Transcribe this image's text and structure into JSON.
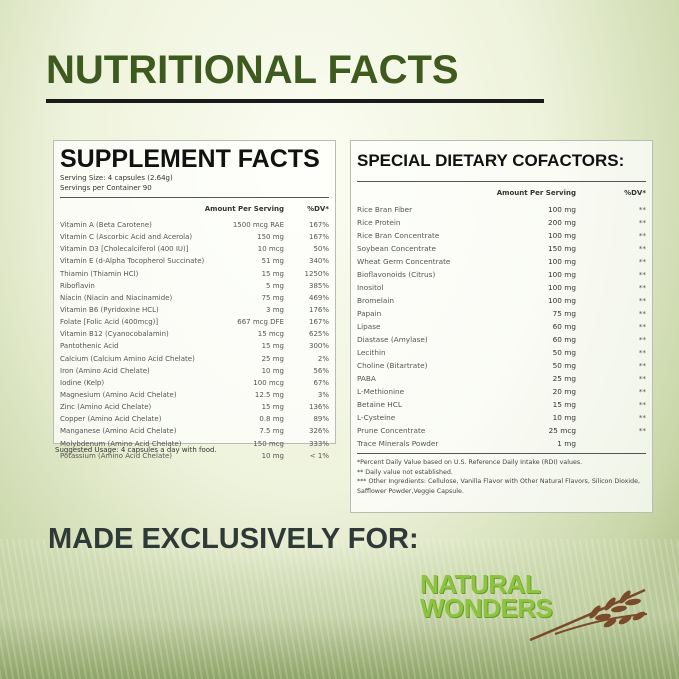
{
  "title": "NUTRITIONAL FACTS",
  "supplement": {
    "heading": "SUPPLEMENT FACTS",
    "serving_size": "Serving Size: 4 capsules (2.64g)",
    "servings": "Servings per Container 90",
    "col_amount": "Amount Per Serving",
    "col_dv": "%DV*",
    "rows": [
      [
        "Vitamin A (Beta Carotene)",
        "1500 mcg RAE",
        "167%"
      ],
      [
        "Vitamin C (Ascorbic Acid and Acerola)",
        "150 mg",
        "167%"
      ],
      [
        "Vitamin D3 [Cholecalciferol (400 IU)]",
        "10 mcg",
        "50%"
      ],
      [
        "Vitamin E (d-Alpha Tocopherol Succinate)",
        "51 mg",
        "340%"
      ],
      [
        "Thiamin (Thiamin HCl)",
        "15 mg",
        "1250%"
      ],
      [
        "Riboflavin",
        "5 mg",
        "385%"
      ],
      [
        "Niacin (Niacin and Niacinamide)",
        "75 mg",
        "469%"
      ],
      [
        "Vitamin B6 (Pyridoxine HCL)",
        "3 mg",
        "176%"
      ],
      [
        "Folate [Folic Acid (400mcg)]",
        "667 mcg DFE",
        "167%"
      ],
      [
        "Vitamin B12 (Cyanocobalamin)",
        "15 mcg",
        "625%"
      ],
      [
        "Pantothenic Acid",
        "15 mg",
        "300%"
      ],
      [
        "Calcium (Calcium Amino Acid Chelate)",
        "25 mg",
        "2%"
      ],
      [
        "Iron (Amino Acid Chelate)",
        "10 mg",
        "56%"
      ],
      [
        "Iodine (Kelp)",
        "100 mcg",
        "67%"
      ],
      [
        "Magnesium (Amino Acid Chelate)",
        "12.5 mg",
        "3%"
      ],
      [
        "Zinc (Amino Acid Chelate)",
        "15 mg",
        "136%"
      ],
      [
        "Copper (Amino Acid Chelate)",
        "0.8 mg",
        "89%"
      ],
      [
        "Manganese (Amino Acid Chelate)",
        "7.5 mg",
        "326%"
      ],
      [
        "Molybdenum (Amino Acid Chelate)",
        "150 mcg",
        "333%"
      ],
      [
        "Potassium (Amino Acid Chelate)",
        "10 mg",
        "< 1%"
      ]
    ],
    "usage": "Suggested Usage: 4 capsules a day with food."
  },
  "cofactors": {
    "heading": "SPECIAL DIETARY COFACTORS:",
    "col_amount": "Amount Per Serving",
    "col_dv": "%DV*",
    "rows": [
      [
        "Rice Bran Fiber",
        "100 mg",
        "**"
      ],
      [
        "Rice Protein",
        "200 mg",
        "**"
      ],
      [
        "Rice Bran Concentrate",
        "100 mg",
        "**"
      ],
      [
        "Soybean Concentrate",
        "150 mg",
        "**"
      ],
      [
        "Wheat Germ Concentrate",
        "100 mg",
        "**"
      ],
      [
        "Bioflavonoids (Citrus)",
        "100 mg",
        "**"
      ],
      [
        "Inositol",
        "100 mg",
        "**"
      ],
      [
        "Bromelain",
        "100 mg",
        "**"
      ],
      [
        "Papain",
        "75 mg",
        "**"
      ],
      [
        "Lipase",
        "60 mg",
        "**"
      ],
      [
        "Diastase (Amylase)",
        "60 mg",
        "**"
      ],
      [
        "Lecithin",
        "50 mg",
        "**"
      ],
      [
        "Choline (Bitartrate)",
        "50 mg",
        "**"
      ],
      [
        "PABA",
        "25 mg",
        "**"
      ],
      [
        "L-Methionine",
        "20 mg",
        "**"
      ],
      [
        "Betaine HCL",
        "15 mg",
        "**"
      ],
      [
        "L-Cysteine",
        "10 mg",
        "**"
      ],
      [
        "Prune Concentrate",
        "25 mcg",
        "**"
      ],
      [
        "Trace Minerals Powder",
        "1 mg",
        ""
      ]
    ],
    "note1": "*Percent Daily Value based on U.S. Reference Daily Intake (RDI) values.",
    "note2": "** Daily value not established.",
    "note3": "*** Other Ingredients: Cellulose, Vanilla Flavor with Other Natural Flavors, Silicon Dioxide, Safflower Powder,Veggie Capsule."
  },
  "made_for": "MADE EXCLUSIVELY FOR:",
  "logo": {
    "line1": "NATURAL",
    "line2": "WONDERS",
    "icon": "wheat-icon",
    "color": "#8cc43f"
  }
}
